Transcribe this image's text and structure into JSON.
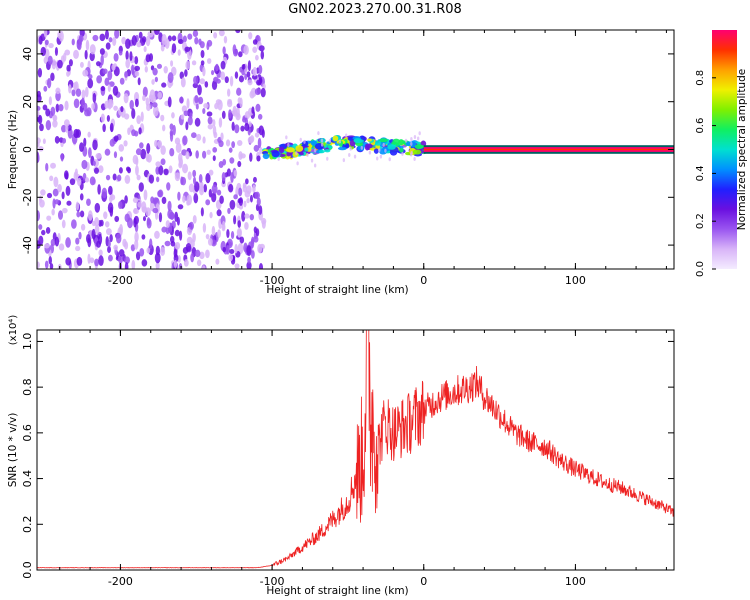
{
  "title": "GN02.2023.270.00.31.R08",
  "colors": {
    "snr_line": "#ee2222",
    "colormap": [
      "#f4ecff",
      "#d8b4f8",
      "#9a55f0",
      "#6a10e0",
      "#2020ff",
      "#0090ff",
      "#00e0d0",
      "#10f060",
      "#80f000",
      "#f0f000",
      "#ffa000",
      "#ff3000",
      "#ff0070"
    ]
  },
  "chart_data": [
    {
      "type": "heatmap",
      "xlabel": "Height of straight line (km)",
      "ylabel": "Frequency (Hz)",
      "xlim": [
        -255,
        165
      ],
      "ylim": [
        -50,
        50
      ],
      "xticks": [
        -200,
        -100,
        0,
        100
      ],
      "xtick_labels": [
        "-200",
        "-100",
        "0",
        "100"
      ],
      "yticks": [
        -40,
        -20,
        0,
        20,
        40
      ],
      "ytick_labels": [
        "-40",
        "-20",
        "0",
        "20",
        "40"
      ],
      "colorbar": {
        "label": "Normalized spectral amplitude",
        "range": [
          0,
          1
        ],
        "ticks": [
          0.0,
          0.2,
          0.4,
          0.6,
          0.8
        ],
        "tick_labels": [
          "0.0",
          "0.2",
          "0.4",
          "0.6",
          "0.8"
        ]
      },
      "regions": [
        {
          "x": [
            -255,
            -105
          ],
          "freq": [
            -50,
            50
          ],
          "amplitude": [
            0.0,
            0.12
          ]
        },
        {
          "x": [
            -105,
            0
          ],
          "freq": [
            -3,
            7
          ],
          "amplitude": [
            0.2,
            0.8
          ]
        },
        {
          "x": [
            0,
            165
          ],
          "freq": [
            -1,
            1
          ],
          "amplitude": [
            0.9,
            1.0
          ]
        }
      ],
      "grid": false
    },
    {
      "type": "line",
      "xlabel": "Height of straight line (km)",
      "ylabel": "SNR (10 * v/v)",
      "yscale_label": "(x10⁴)",
      "xlim": [
        -255,
        165
      ],
      "ylim": [
        0,
        1.05
      ],
      "xticks": [
        -200,
        -100,
        0,
        100
      ],
      "xtick_labels": [
        "-200",
        "-100",
        "0",
        "100"
      ],
      "yticks": [
        0.0,
        0.2,
        0.4,
        0.6,
        0.8,
        1.0
      ],
      "ytick_labels": [
        "0.0",
        "0.2",
        "0.4",
        "0.6",
        "0.8",
        "1.0"
      ],
      "series": [
        {
          "x": [
            -255,
            -200,
            -150,
            -110,
            -100,
            -90,
            -80,
            -70,
            -60,
            -50,
            -45,
            -40,
            -37,
            -35,
            -30,
            -25,
            -20,
            -15,
            -10,
            -5,
            0,
            10,
            20,
            30,
            35,
            40,
            50,
            60,
            70,
            80,
            90,
            100,
            110,
            120,
            130,
            140,
            150,
            160,
            165
          ],
          "y": [
            0.01,
            0.01,
            0.01,
            0.01,
            0.02,
            0.05,
            0.1,
            0.15,
            0.22,
            0.3,
            0.4,
            0.5,
            1.05,
            0.7,
            0.55,
            0.65,
            0.6,
            0.62,
            0.64,
            0.67,
            0.7,
            0.75,
            0.78,
            0.8,
            0.82,
            0.76,
            0.68,
            0.6,
            0.56,
            0.54,
            0.48,
            0.44,
            0.41,
            0.38,
            0.36,
            0.33,
            0.3,
            0.27,
            0.25
          ],
          "noise": 0.05
        }
      ],
      "grid": false
    }
  ]
}
